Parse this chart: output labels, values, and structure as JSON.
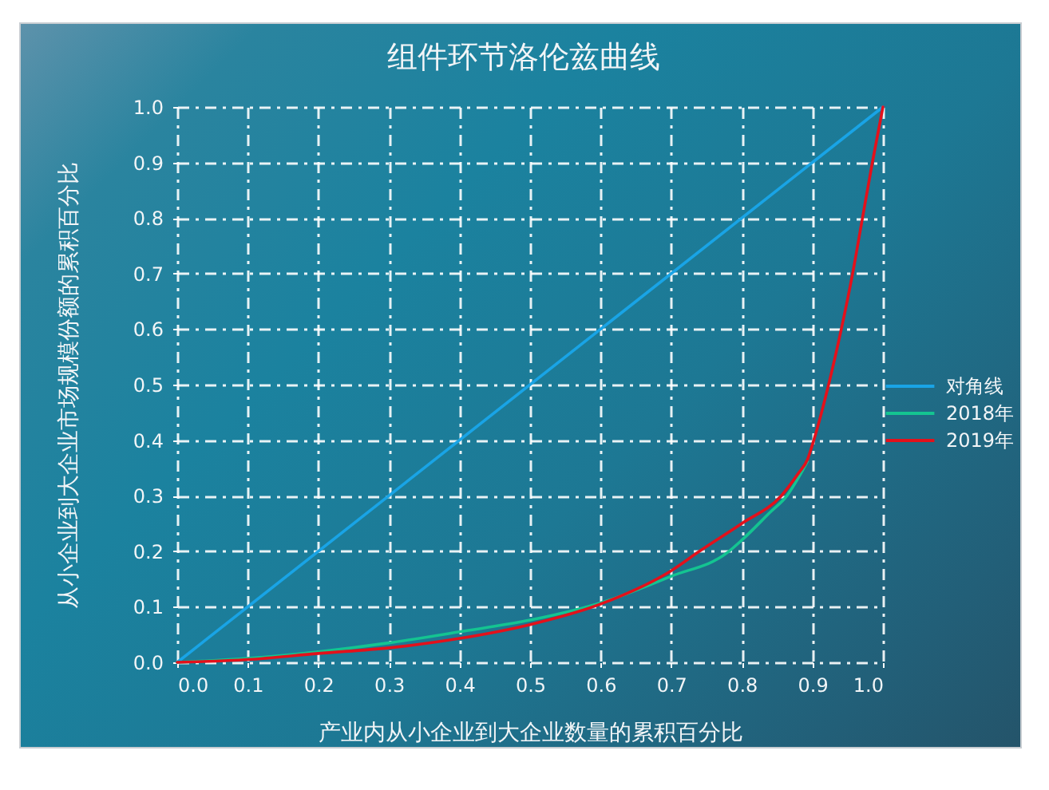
{
  "chart_data": {
    "type": "line",
    "title": "组件环节洛伦兹曲线",
    "xlabel": "产业内从小企业到大企业数量的累积百分比",
    "ylabel": "从小企业到大企业市场规模份额的累积百分比",
    "series": [
      {
        "name": "对角线",
        "color": "#19a4e6",
        "x": [
          0,
          1
        ],
        "values": [
          0,
          1
        ]
      },
      {
        "name": "2018年",
        "color": "#14c491",
        "x": [
          0,
          0.1,
          0.2,
          0.3,
          0.4,
          0.5,
          0.6,
          0.7,
          0.78,
          0.8,
          0.84,
          0.864,
          0.88,
          0.893
        ],
        "values": [
          0,
          0.007,
          0.019,
          0.035,
          0.055,
          0.076,
          0.107,
          0.155,
          0.198,
          0.22,
          0.27,
          0.3,
          0.332,
          0.362
        ]
      },
      {
        "name": "2019年",
        "color": "#e3111b",
        "x": [
          0,
          0.1,
          0.2,
          0.3,
          0.4,
          0.5,
          0.6,
          0.7,
          0.74,
          0.8,
          0.856,
          0.88,
          0.893,
          0.902,
          0.923,
          0.941,
          0.957,
          0.971,
          0.985,
          1
        ],
        "values": [
          0,
          0.005,
          0.016,
          0.026,
          0.043,
          0.068,
          0.105,
          0.165,
          0.2,
          0.25,
          0.3,
          0.34,
          0.365,
          0.4,
          0.5,
          0.6,
          0.7,
          0.8,
          0.9,
          1
        ]
      }
    ],
    "xlim": [
      0,
      1
    ],
    "ylim": [
      0,
      1
    ],
    "xticks": [
      {
        "value": 0,
        "label": "0.0"
      },
      0.1,
      0.2,
      0.3,
      0.4,
      0.5,
      0.6,
      0.7,
      0.8,
      0.9,
      {
        "value": 1,
        "label": "1.0"
      }
    ],
    "yticks": [
      {
        "value": 0,
        "label": "0.0"
      },
      0.1,
      0.2,
      0.3,
      0.4,
      0.5,
      0.6,
      0.7,
      0.8,
      0.9,
      {
        "value": 1,
        "label": "1.0"
      }
    ],
    "grid": true,
    "legend": "right",
    "marker": "none",
    "line_style": "solid"
  }
}
